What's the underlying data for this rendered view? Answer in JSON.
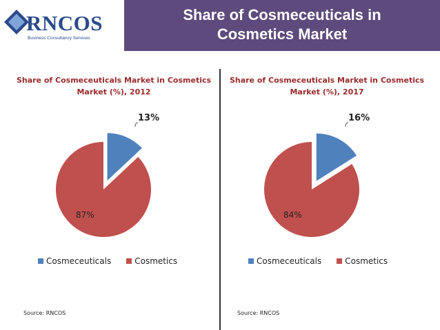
{
  "logo": {
    "text": "RNCOS",
    "tagline": "Business Consultancy Services"
  },
  "header": {
    "title_line1": "Share of Cosmeceuticals in",
    "title_line2": "Cosmetics Market"
  },
  "colors": {
    "cosmeceuticals": "#4f81bd",
    "cosmetics": "#c0504d",
    "header_bg": "#5e4a7c",
    "title_text": "#9a2a2a"
  },
  "chart_data": [
    {
      "type": "pie",
      "title_line1": "Share of Cosmeceuticals Market in Cosmetics",
      "title_line2": "Market (%), 2012",
      "slices": [
        {
          "name": "Cosmeceuticals",
          "value": 13,
          "label": "13%"
        },
        {
          "name": "Cosmetics",
          "value": 87,
          "label": "87%"
        }
      ],
      "legend_position": "bottom",
      "source": "Source: RNCOS"
    },
    {
      "type": "pie",
      "title_line1": "Share of Cosmeceuticals Market in Cosmetics",
      "title_line2": "Market (%), 2017",
      "slices": [
        {
          "name": "Cosmeceuticals",
          "value": 16,
          "label": "16%"
        },
        {
          "name": "Cosmetics",
          "value": 84,
          "label": "84%"
        }
      ],
      "legend_position": "bottom",
      "source": "Source: RNCOS"
    }
  ]
}
